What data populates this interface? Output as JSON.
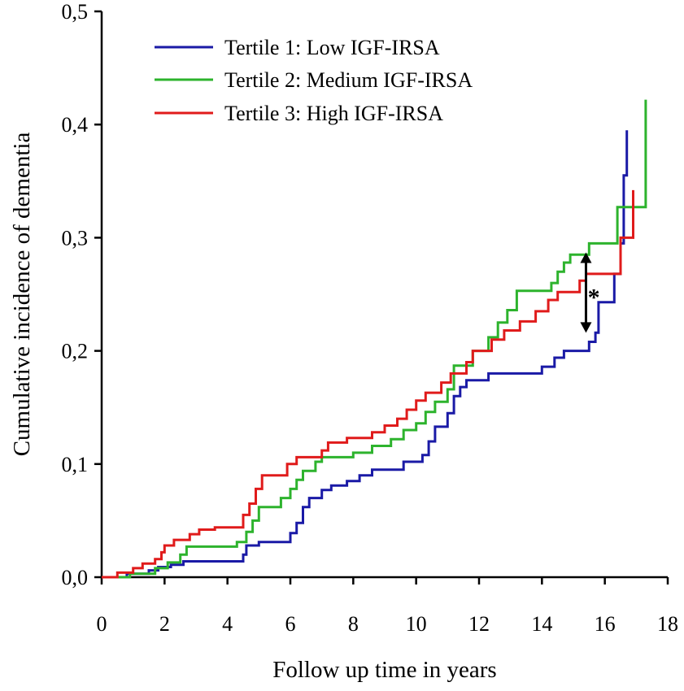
{
  "chart_data": {
    "type": "line",
    "step": true,
    "title": "",
    "xlabel": "Follow up time in years",
    "ylabel": "Cumulative incidence of dementia",
    "xlim": [
      0,
      18
    ],
    "ylim": [
      0,
      0.5
    ],
    "xticks": [
      0,
      2,
      4,
      6,
      8,
      10,
      12,
      14,
      16,
      18
    ],
    "xtick_labels": [
      "0",
      "2",
      "4",
      "6",
      "8",
      "10",
      "12",
      "14",
      "16",
      "18"
    ],
    "yticks": [
      0,
      0.1,
      0.2,
      0.3,
      0.4,
      0.5
    ],
    "ytick_labels": [
      "0,0",
      "0,1",
      "0,2",
      "0,3",
      "0,4",
      "0,5"
    ],
    "grid": false,
    "legend_position": "top-left",
    "series": [
      {
        "name": "Tertile 1: Low IGF-IRSA",
        "color": "#1a1aa6",
        "points": [
          [
            0,
            0
          ],
          [
            0.8,
            0
          ],
          [
            0.8,
            0.003
          ],
          [
            1.5,
            0.003
          ],
          [
            1.5,
            0.006
          ],
          [
            1.8,
            0.006
          ],
          [
            1.8,
            0.009
          ],
          [
            2.2,
            0.009
          ],
          [
            2.2,
            0.011
          ],
          [
            2.6,
            0.011
          ],
          [
            2.6,
            0.014
          ],
          [
            4.5,
            0.014
          ],
          [
            4.5,
            0.02
          ],
          [
            4.6,
            0.02
          ],
          [
            4.6,
            0.028
          ],
          [
            5,
            0.028
          ],
          [
            5,
            0.031
          ],
          [
            6,
            0.031
          ],
          [
            6,
            0.039
          ],
          [
            6.2,
            0.039
          ],
          [
            6.2,
            0.048
          ],
          [
            6.4,
            0.048
          ],
          [
            6.4,
            0.062
          ],
          [
            6.6,
            0.062
          ],
          [
            6.6,
            0.07
          ],
          [
            7,
            0.07
          ],
          [
            7,
            0.077
          ],
          [
            7.3,
            0.077
          ],
          [
            7.3,
            0.081
          ],
          [
            7.8,
            0.081
          ],
          [
            7.8,
            0.085
          ],
          [
            8.2,
            0.085
          ],
          [
            8.2,
            0.09
          ],
          [
            8.6,
            0.09
          ],
          [
            8.6,
            0.095
          ],
          [
            9.6,
            0.095
          ],
          [
            9.6,
            0.102
          ],
          [
            10.2,
            0.102
          ],
          [
            10.2,
            0.108
          ],
          [
            10.4,
            0.108
          ],
          [
            10.4,
            0.12
          ],
          [
            10.6,
            0.12
          ],
          [
            10.6,
            0.133
          ],
          [
            11,
            0.133
          ],
          [
            11,
            0.145
          ],
          [
            11.2,
            0.145
          ],
          [
            11.2,
            0.16
          ],
          [
            11.4,
            0.16
          ],
          [
            11.4,
            0.168
          ],
          [
            11.6,
            0.168
          ],
          [
            11.6,
            0.174
          ],
          [
            12.3,
            0.174
          ],
          [
            12.3,
            0.18
          ],
          [
            14,
            0.18
          ],
          [
            14,
            0.186
          ],
          [
            14.4,
            0.186
          ],
          [
            14.4,
            0.194
          ],
          [
            14.7,
            0.194
          ],
          [
            14.7,
            0.2
          ],
          [
            15.5,
            0.2
          ],
          [
            15.5,
            0.208
          ],
          [
            15.7,
            0.208
          ],
          [
            15.7,
            0.216
          ],
          [
            15.8,
            0.216
          ],
          [
            15.8,
            0.243
          ],
          [
            16.3,
            0.243
          ],
          [
            16.3,
            0.268
          ],
          [
            16.5,
            0.268
          ],
          [
            16.5,
            0.295
          ],
          [
            16.6,
            0.295
          ],
          [
            16.6,
            0.355
          ],
          [
            16.7,
            0.355
          ],
          [
            16.7,
            0.395
          ]
        ]
      },
      {
        "name": "Tertile 2: Medium IGF-IRSA",
        "color": "#2db32d",
        "points": [
          [
            0,
            0
          ],
          [
            0.9,
            0
          ],
          [
            0.9,
            0.003
          ],
          [
            1.7,
            0.003
          ],
          [
            1.7,
            0.008
          ],
          [
            2.1,
            0.008
          ],
          [
            2.1,
            0.013
          ],
          [
            2.5,
            0.013
          ],
          [
            2.5,
            0.02
          ],
          [
            2.7,
            0.02
          ],
          [
            2.7,
            0.027
          ],
          [
            4.3,
            0.027
          ],
          [
            4.3,
            0.031
          ],
          [
            4.6,
            0.031
          ],
          [
            4.6,
            0.04
          ],
          [
            4.8,
            0.04
          ],
          [
            4.8,
            0.05
          ],
          [
            5,
            0.05
          ],
          [
            5,
            0.062
          ],
          [
            5.7,
            0.062
          ],
          [
            5.7,
            0.07
          ],
          [
            6,
            0.07
          ],
          [
            6,
            0.078
          ],
          [
            6.2,
            0.078
          ],
          [
            6.2,
            0.086
          ],
          [
            6.4,
            0.086
          ],
          [
            6.4,
            0.094
          ],
          [
            6.8,
            0.094
          ],
          [
            6.8,
            0.102
          ],
          [
            7,
            0.102
          ],
          [
            7,
            0.106
          ],
          [
            8,
            0.106
          ],
          [
            8,
            0.11
          ],
          [
            8.6,
            0.11
          ],
          [
            8.6,
            0.116
          ],
          [
            9.2,
            0.116
          ],
          [
            9.2,
            0.122
          ],
          [
            9.6,
            0.122
          ],
          [
            9.6,
            0.13
          ],
          [
            10,
            0.13
          ],
          [
            10,
            0.136
          ],
          [
            10.3,
            0.136
          ],
          [
            10.3,
            0.146
          ],
          [
            10.6,
            0.146
          ],
          [
            10.6,
            0.155
          ],
          [
            11,
            0.155
          ],
          [
            11,
            0.166
          ],
          [
            11.2,
            0.166
          ],
          [
            11.2,
            0.187
          ],
          [
            11.8,
            0.187
          ],
          [
            11.8,
            0.2
          ],
          [
            12.3,
            0.2
          ],
          [
            12.3,
            0.212
          ],
          [
            12.6,
            0.212
          ],
          [
            12.6,
            0.225
          ],
          [
            12.9,
            0.225
          ],
          [
            12.9,
            0.236
          ],
          [
            13.2,
            0.236
          ],
          [
            13.2,
            0.253
          ],
          [
            14.3,
            0.253
          ],
          [
            14.3,
            0.26
          ],
          [
            14.5,
            0.26
          ],
          [
            14.5,
            0.27
          ],
          [
            14.7,
            0.27
          ],
          [
            14.7,
            0.278
          ],
          [
            14.9,
            0.278
          ],
          [
            14.9,
            0.285
          ],
          [
            15.5,
            0.285
          ],
          [
            15.5,
            0.295
          ],
          [
            16.4,
            0.295
          ],
          [
            16.4,
            0.327
          ],
          [
            17.3,
            0.327
          ],
          [
            17.3,
            0.422
          ]
        ]
      },
      {
        "name": "Tertile 3: High IGF-IRSA",
        "color": "#e01b1b",
        "points": [
          [
            0,
            0
          ],
          [
            0.5,
            0
          ],
          [
            0.5,
            0.004
          ],
          [
            1,
            0.004
          ],
          [
            1,
            0.008
          ],
          [
            1.3,
            0.008
          ],
          [
            1.3,
            0.012
          ],
          [
            1.7,
            0.012
          ],
          [
            1.7,
            0.016
          ],
          [
            1.9,
            0.016
          ],
          [
            1.9,
            0.022
          ],
          [
            2,
            0.022
          ],
          [
            2,
            0.028
          ],
          [
            2.3,
            0.028
          ],
          [
            2.3,
            0.033
          ],
          [
            2.8,
            0.033
          ],
          [
            2.8,
            0.038
          ],
          [
            3.1,
            0.038
          ],
          [
            3.1,
            0.042
          ],
          [
            3.6,
            0.042
          ],
          [
            3.6,
            0.044
          ],
          [
            4.5,
            0.044
          ],
          [
            4.5,
            0.055
          ],
          [
            4.7,
            0.055
          ],
          [
            4.7,
            0.065
          ],
          [
            4.9,
            0.065
          ],
          [
            4.9,
            0.078
          ],
          [
            5.1,
            0.078
          ],
          [
            5.1,
            0.09
          ],
          [
            5.9,
            0.09
          ],
          [
            5.9,
            0.1
          ],
          [
            6.2,
            0.1
          ],
          [
            6.2,
            0.106
          ],
          [
            7,
            0.106
          ],
          [
            7,
            0.112
          ],
          [
            7.2,
            0.112
          ],
          [
            7.2,
            0.119
          ],
          [
            7.8,
            0.119
          ],
          [
            7.8,
            0.123
          ],
          [
            8.6,
            0.123
          ],
          [
            8.6,
            0.128
          ],
          [
            9,
            0.128
          ],
          [
            9,
            0.134
          ],
          [
            9.4,
            0.134
          ],
          [
            9.4,
            0.14
          ],
          [
            9.7,
            0.14
          ],
          [
            9.7,
            0.148
          ],
          [
            10,
            0.148
          ],
          [
            10,
            0.156
          ],
          [
            10.3,
            0.156
          ],
          [
            10.3,
            0.163
          ],
          [
            10.8,
            0.163
          ],
          [
            10.8,
            0.172
          ],
          [
            11.1,
            0.172
          ],
          [
            11.1,
            0.18
          ],
          [
            11.6,
            0.18
          ],
          [
            11.6,
            0.19
          ],
          [
            11.8,
            0.19
          ],
          [
            11.8,
            0.2
          ],
          [
            12.4,
            0.2
          ],
          [
            12.4,
            0.21
          ],
          [
            12.8,
            0.21
          ],
          [
            12.8,
            0.218
          ],
          [
            13.3,
            0.218
          ],
          [
            13.3,
            0.226
          ],
          [
            13.8,
            0.226
          ],
          [
            13.8,
            0.235
          ],
          [
            14.2,
            0.235
          ],
          [
            14.2,
            0.245
          ],
          [
            14.5,
            0.245
          ],
          [
            14.5,
            0.252
          ],
          [
            15.2,
            0.252
          ],
          [
            15.2,
            0.262
          ],
          [
            15.4,
            0.262
          ],
          [
            15.4,
            0.268
          ],
          [
            16.5,
            0.268
          ],
          [
            16.5,
            0.3
          ],
          [
            16.9,
            0.3
          ],
          [
            16.9,
            0.342
          ]
        ]
      }
    ],
    "annotations": [
      {
        "type": "double-arrow",
        "x": 15.4,
        "y_from": 0.216,
        "y_to": 0.287
      },
      {
        "type": "text",
        "text": "*",
        "x": 15.65,
        "y": 0.249
      }
    ]
  }
}
